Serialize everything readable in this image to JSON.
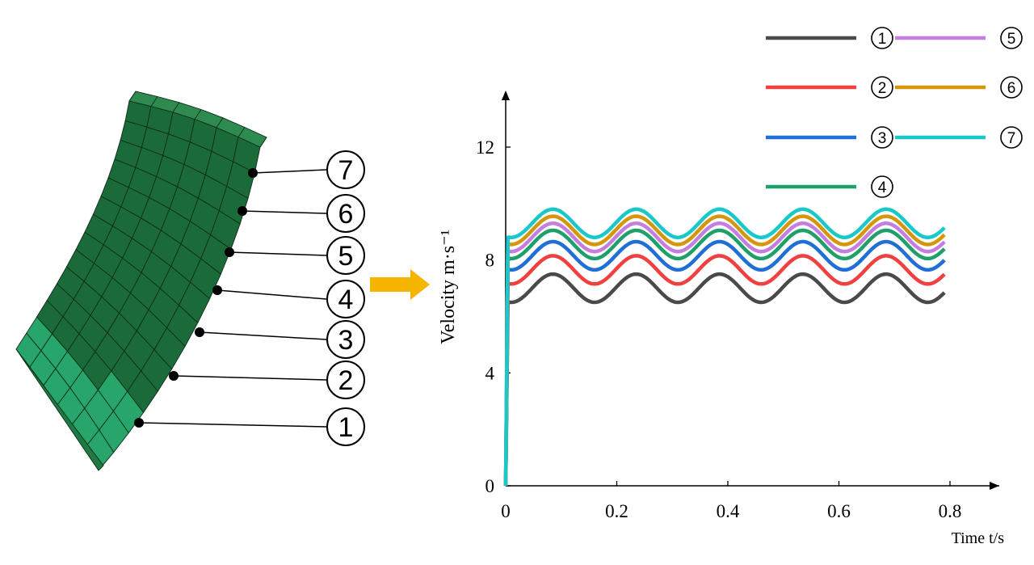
{
  "model": {
    "points": [
      {
        "id": "7",
        "marker": "⑦"
      },
      {
        "id": "6",
        "marker": "⑥"
      },
      {
        "id": "5",
        "marker": "⑤"
      },
      {
        "id": "4",
        "marker": "④"
      },
      {
        "id": "3",
        "marker": "③"
      },
      {
        "id": "2",
        "marker": "②"
      },
      {
        "id": "1",
        "marker": "①"
      }
    ],
    "mesh_color": "#1b6b3a",
    "mesh_light_color": "#27a56a",
    "mesh_line_color": "#0d2e17"
  },
  "arrow_color": "#f5b400",
  "chart_data": {
    "type": "line",
    "title": "",
    "xlabel": "Time t/s",
    "ylabel": "Velocity m·s⁻¹",
    "xlim": [
      0,
      0.88
    ],
    "ylim": [
      0,
      14
    ],
    "xticks": [
      0,
      0.2,
      0.4,
      0.6,
      0.8
    ],
    "xtick_labels": [
      "0",
      "0.2",
      "0.4",
      "0.6",
      "0.8"
    ],
    "yticks": [
      0,
      4,
      8,
      12
    ],
    "ytick_labels": [
      "0",
      "4",
      "8",
      "12"
    ],
    "grid": false,
    "legend_position": "top-right",
    "period": 0.15,
    "t_end": 0.79,
    "series": [
      {
        "name": "①",
        "color": "#4a4a4a",
        "mean": 7.0,
        "amplitude": 0.5
      },
      {
        "name": "②",
        "color": "#f04040",
        "mean": 7.65,
        "amplitude": 0.5
      },
      {
        "name": "③",
        "color": "#1f6fd6",
        "mean": 8.15,
        "amplitude": 0.5
      },
      {
        "name": "④",
        "color": "#1fa06a",
        "mean": 8.55,
        "amplitude": 0.5
      },
      {
        "name": "⑤",
        "color": "#c57ee0",
        "mean": 8.8,
        "amplitude": 0.5
      },
      {
        "name": "⑥",
        "color": "#d4960a",
        "mean": 9.05,
        "amplitude": 0.5
      },
      {
        "name": "⑦",
        "color": "#19c8c8",
        "mean": 9.3,
        "amplitude": 0.5
      }
    ]
  }
}
